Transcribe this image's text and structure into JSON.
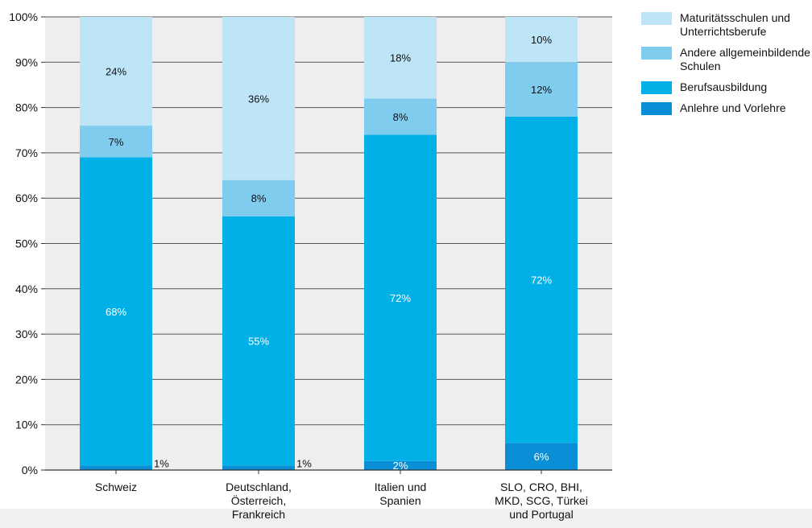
{
  "chart_data": {
    "type": "bar",
    "stacked": true,
    "categories": [
      [
        "Schweiz"
      ],
      [
        "Deutschland,",
        "Österreich,",
        "Frankreich"
      ],
      [
        "Italien und",
        "Spanien"
      ],
      [
        "SLO, CRO, BHI,",
        "MKD, SCG, Türkei",
        "und Portugal"
      ]
    ],
    "series": [
      {
        "name": "Anlehre und Vorlehre",
        "color": "#0a8fd6",
        "values": [
          1,
          1,
          2,
          6
        ],
        "labels": [
          "1%",
          "1%",
          "2%",
          "6%"
        ]
      },
      {
        "name": "Berufsausbildung",
        "color": "#00b0e6",
        "values": [
          68,
          55,
          72,
          72
        ],
        "labels": [
          "68%",
          "55%",
          "72%",
          "72%"
        ]
      },
      {
        "name": "Andere allgemeinbildende Schulen",
        "color": "#80ccee",
        "values": [
          7,
          8,
          8,
          12
        ],
        "labels": [
          "7%",
          "8%",
          "8%",
          "12%"
        ]
      },
      {
        "name": "Maturitätsschulen und Unterrichtsberufe",
        "color": "#bde4f7",
        "values": [
          24,
          36,
          18,
          10
        ],
        "labels": [
          "24%",
          "36%",
          "18%",
          "10%"
        ]
      }
    ],
    "yticks": [
      "0%",
      "10%",
      "20%",
      "30%",
      "40%",
      "50%",
      "60%",
      "70%",
      "80%",
      "90%",
      "100%"
    ],
    "ylim": [
      0,
      100
    ],
    "grid": true,
    "legend_position": "right",
    "plot_background": "#eeeeee"
  },
  "legend": [
    {
      "label_lines": [
        "Maturitätsschulen und",
        "Unterrichtsberufe"
      ],
      "color": "#bde4f7"
    },
    {
      "label_lines": [
        "Andere allgemeinbildende",
        "Schulen"
      ],
      "color": "#80ccee"
    },
    {
      "label_lines": [
        "Berufsausbildung"
      ],
      "color": "#00b0e6"
    },
    {
      "label_lines": [
        "Anlehre und Vorlehre"
      ],
      "color": "#0a8fd6"
    }
  ]
}
